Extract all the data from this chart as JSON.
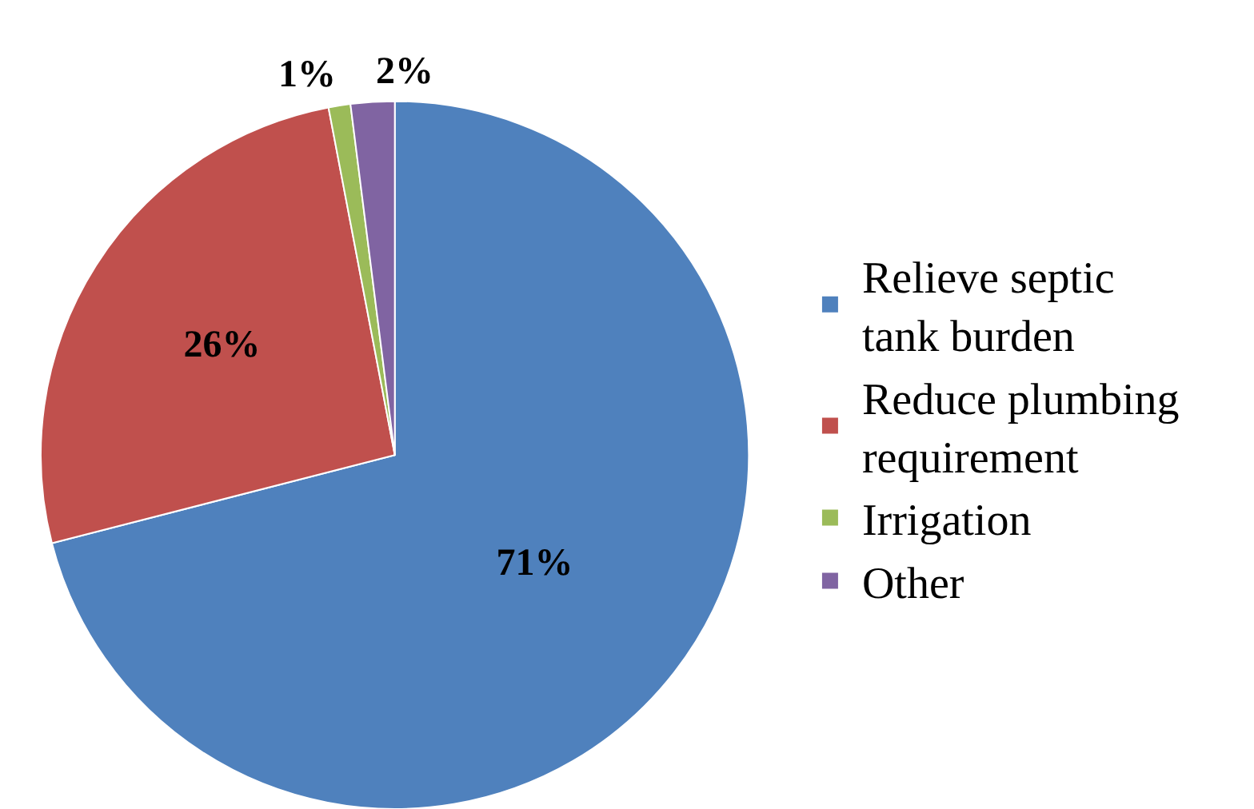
{
  "chart_data": {
    "type": "pie",
    "categories": [
      "Relieve septic tank burden",
      "Reduce plumbing requirement",
      "Irrigation",
      "Other"
    ],
    "values": [
      71,
      26,
      1,
      2
    ],
    "colors": [
      "#4f81bd",
      "#c0504d",
      "#9bbb59",
      "#8064a2"
    ],
    "value_labels": [
      "71%",
      "26%",
      "1%",
      "2%"
    ],
    "legend": "right"
  }
}
